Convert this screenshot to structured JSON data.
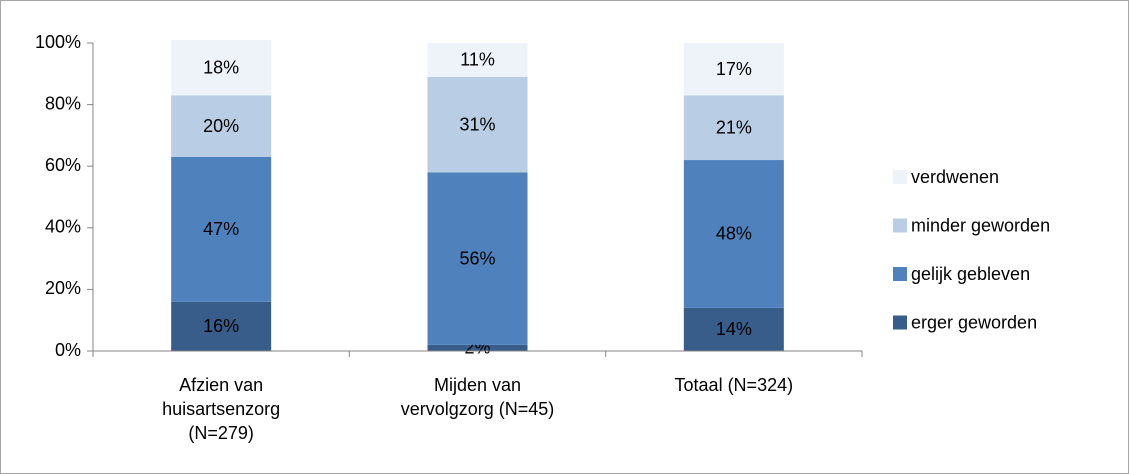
{
  "chart_data": {
    "type": "stacked_bar",
    "categories": [
      "Afzien van\nhuisartsenzorg\n(N=279)",
      "Mijden van\nvervolgzorg (N=45)",
      "Totaal (N=324)"
    ],
    "series": [
      {
        "name": "erger geworden",
        "color": "#385d8a",
        "values": [
          16,
          2,
          14
        ],
        "value_labels": [
          "16%",
          "2%",
          "14%"
        ]
      },
      {
        "name": "gelijk gebleven",
        "color": "#4f81bd",
        "values": [
          47,
          56,
          48
        ],
        "value_labels": [
          "47%",
          "56%",
          "48%"
        ]
      },
      {
        "name": "minder geworden",
        "color": "#b9cde5",
        "values": [
          20,
          31,
          21
        ],
        "value_labels": [
          "20%",
          "31%",
          "21%"
        ]
      },
      {
        "name": "verdwenen",
        "color": "#eef3fa",
        "values": [
          18,
          11,
          17
        ],
        "value_labels": [
          "18%",
          "11%",
          "17%"
        ]
      }
    ],
    "ylim": [
      0,
      100
    ],
    "yticks": [
      {
        "value": 0,
        "label": "0%"
      },
      {
        "value": 20,
        "label": "20%"
      },
      {
        "value": 40,
        "label": "40%"
      },
      {
        "value": 60,
        "label": "60%"
      },
      {
        "value": 80,
        "label": "80%"
      },
      {
        "value": 100,
        "label": "100%"
      }
    ],
    "legend": "right"
  }
}
